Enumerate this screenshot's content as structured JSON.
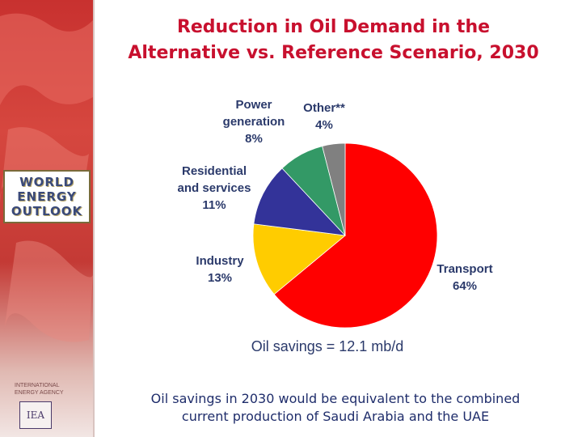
{
  "title": {
    "line1": "Reduction in Oil Demand in the",
    "line2": "Alternative vs. Reference Scenario, 2030"
  },
  "logo": {
    "line1": "WORLD",
    "line2": "ENERGY",
    "line3": "OUTLOOK"
  },
  "agency": {
    "line1": "INTERNATIONAL",
    "line2": "ENERGY AGENCY",
    "mark": "IEA"
  },
  "chart_data": {
    "type": "pie",
    "start": "12 o'clock, clockwise",
    "slices": [
      {
        "key": "transport",
        "label_lines": [
          "Transport",
          "64%"
        ],
        "value": 64,
        "color": "#ff0000"
      },
      {
        "key": "industry",
        "label_lines": [
          "Industry",
          "13%"
        ],
        "value": 13,
        "color": "#ffcc00"
      },
      {
        "key": "residential",
        "label_lines": [
          "Residential",
          "and services",
          "11%"
        ],
        "value": 11,
        "color": "#333399"
      },
      {
        "key": "power",
        "label_lines": [
          "Power",
          "generation",
          "8%"
        ],
        "value": 8,
        "color": "#339966"
      },
      {
        "key": "other",
        "label_lines": [
          "Other**",
          "4%"
        ],
        "value": 4,
        "color": "#808080"
      }
    ]
  },
  "savings_text": "Oil savings = 12.1 mb/d",
  "footnote": {
    "line1": "Oil savings in 2030 would be equivalent to the combined",
    "line2": "current production of Saudi Arabia and the UAE"
  },
  "colors": {
    "title": "#c8102e",
    "text": "#1f2d6b",
    "sidebar": "#c8312f"
  }
}
